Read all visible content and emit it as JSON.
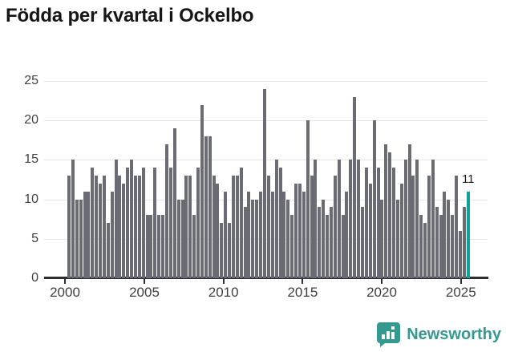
{
  "title": "Födda per kvartal i Ockelbo",
  "chart_data": {
    "type": "bar",
    "title": "Födda per kvartal i Ockelbo",
    "frequency": "quarterly",
    "start_period": "2000-Q1",
    "x_tick_labels": [
      "2000",
      "2005",
      "2010",
      "2015",
      "2020",
      "2025"
    ],
    "y_ticks": [
      0,
      5,
      10,
      15,
      20,
      25
    ],
    "ylim": [
      0,
      25
    ],
    "grid": "horizontal",
    "bar_color": "#6b6b74",
    "highlight_color": "#10a39e",
    "values": [
      13,
      15,
      10,
      10,
      11,
      11,
      14,
      13,
      12,
      13,
      7,
      11,
      15,
      13,
      12,
      14,
      15,
      13,
      13,
      14,
      8,
      8,
      14,
      8,
      8,
      17,
      14,
      19,
      10,
      10,
      13,
      13,
      8,
      14,
      22,
      18,
      18,
      13,
      12,
      7,
      11,
      7,
      13,
      13,
      14,
      9,
      11,
      10,
      10,
      11,
      24,
      13,
      11,
      15,
      14,
      11,
      10,
      8,
      12,
      12,
      11,
      20,
      13,
      15,
      9,
      10,
      8,
      9,
      13,
      15,
      8,
      11,
      15,
      23,
      15,
      9,
      14,
      12,
      20,
      14,
      10,
      17,
      16,
      14,
      10,
      12,
      15,
      17,
      13,
      15,
      8,
      7,
      13,
      15,
      9,
      8,
      11,
      10,
      8,
      13,
      6,
      9,
      11
    ],
    "highlight": {
      "index_from_end": 1,
      "value": 11,
      "label": "11"
    }
  },
  "annotation": {
    "last_value_label": "11"
  },
  "footer": {
    "brand": "Newsworthy",
    "logo_icon": "newsworthy-speech-bubble-bar-chart-icon",
    "brand_color": "#35998f"
  }
}
